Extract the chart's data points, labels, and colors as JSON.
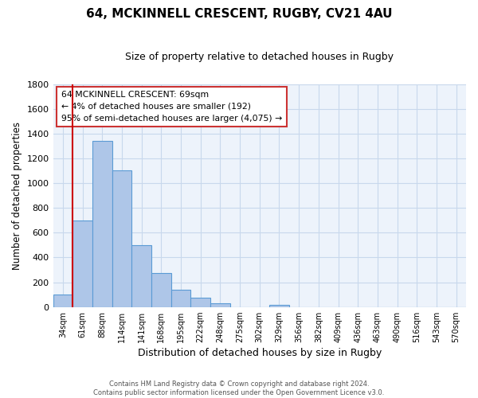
{
  "title": "64, MCKINNELL CRESCENT, RUGBY, CV21 4AU",
  "subtitle": "Size of property relative to detached houses in Rugby",
  "xlabel": "Distribution of detached houses by size in Rugby",
  "ylabel": "Number of detached properties",
  "bar_labels": [
    "34sqm",
    "61sqm",
    "88sqm",
    "114sqm",
    "141sqm",
    "168sqm",
    "195sqm",
    "222sqm",
    "248sqm",
    "275sqm",
    "302sqm",
    "329sqm",
    "356sqm",
    "382sqm",
    "409sqm",
    "436sqm",
    "463sqm",
    "490sqm",
    "516sqm",
    "543sqm",
    "570sqm"
  ],
  "bar_values": [
    100,
    700,
    1340,
    1100,
    500,
    275,
    140,
    75,
    30,
    0,
    0,
    20,
    0,
    0,
    0,
    0,
    0,
    0,
    0,
    0,
    0
  ],
  "bar_color": "#aec6e8",
  "bar_edge_color": "#5b9bd5",
  "vline_color": "#cc0000",
  "vline_x_index": 1,
  "ylim": [
    0,
    1800
  ],
  "yticks": [
    0,
    200,
    400,
    600,
    800,
    1000,
    1200,
    1400,
    1600,
    1800
  ],
  "annotation_title": "64 MCKINNELL CRESCENT: 69sqm",
  "annotation_line1": "← 4% of detached houses are smaller (192)",
  "annotation_line2": "95% of semi-detached houses are larger (4,075) →",
  "annotation_box_color": "#ffffff",
  "annotation_box_edge": "#cc3333",
  "footer1": "Contains HM Land Registry data © Crown copyright and database right 2024.",
  "footer2": "Contains public sector information licensed under the Open Government Licence v3.0.",
  "grid_color": "#c8d8ec",
  "bg_color": "#edf3fb"
}
